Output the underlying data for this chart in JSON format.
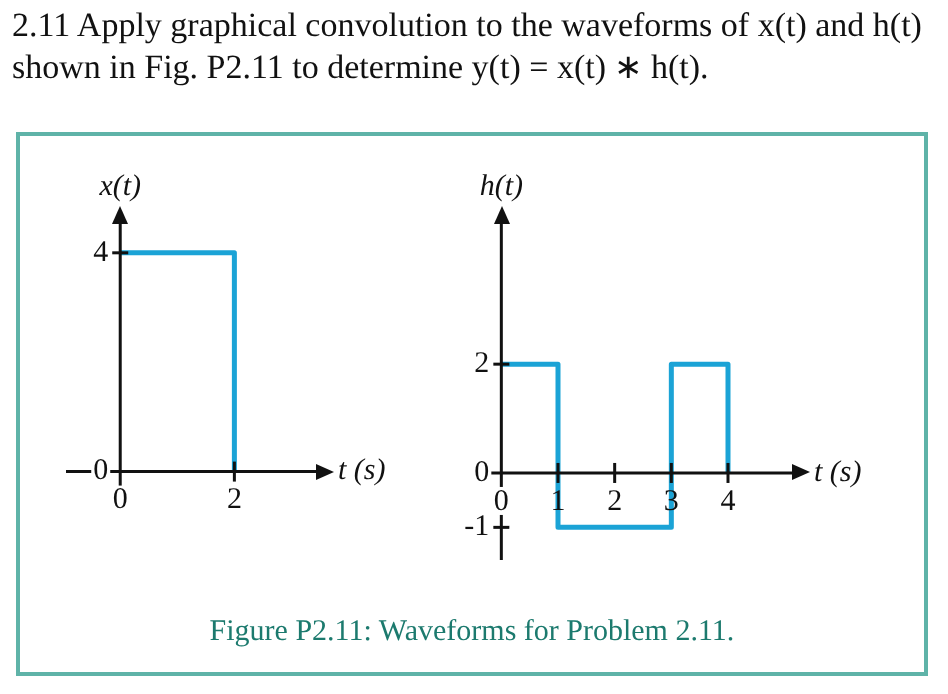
{
  "chart_data": [
    {
      "type": "step",
      "ylabel": "x(t)",
      "xlabel": "t (s)",
      "annotations": [
        "2.11 Apply graphical convolution to the waveforms of x(t) and h(t) shown in Fig. P2.11 to determine y(t) = x(t) ∗ h(t)."
      ],
      "x": [
        0,
        2
      ],
      "series": [
        {
          "color": "#1ba3d6",
          "values": [
            4,
            0
          ]
        }
      ],
      "xlim": [
        -0.95,
        3.5
      ],
      "ylim": [
        -0.3,
        4.6
      ],
      "xticks": [
        0,
        2
      ],
      "yticks": [
        0,
        4
      ],
      "legend": false
    },
    {
      "type": "step",
      "ylabel": "h(t)",
      "xlabel": "t (s)",
      "annotations": [
        "Figure P2.11: Waveforms for Problem 2.11."
      ],
      "x": [
        0,
        1,
        3,
        4
      ],
      "series": [
        {
          "color": "#1ba3d6",
          "values": [
            2,
            -1,
            2,
            0
          ]
        }
      ],
      "xlim": [
        -0.2,
        5.2
      ],
      "ylim": [
        -1.6,
        4.65
      ],
      "xticks": [
        0,
        1,
        2,
        3,
        4
      ],
      "yticks": [
        -1,
        0,
        2
      ],
      "legend": false
    }
  ]
}
